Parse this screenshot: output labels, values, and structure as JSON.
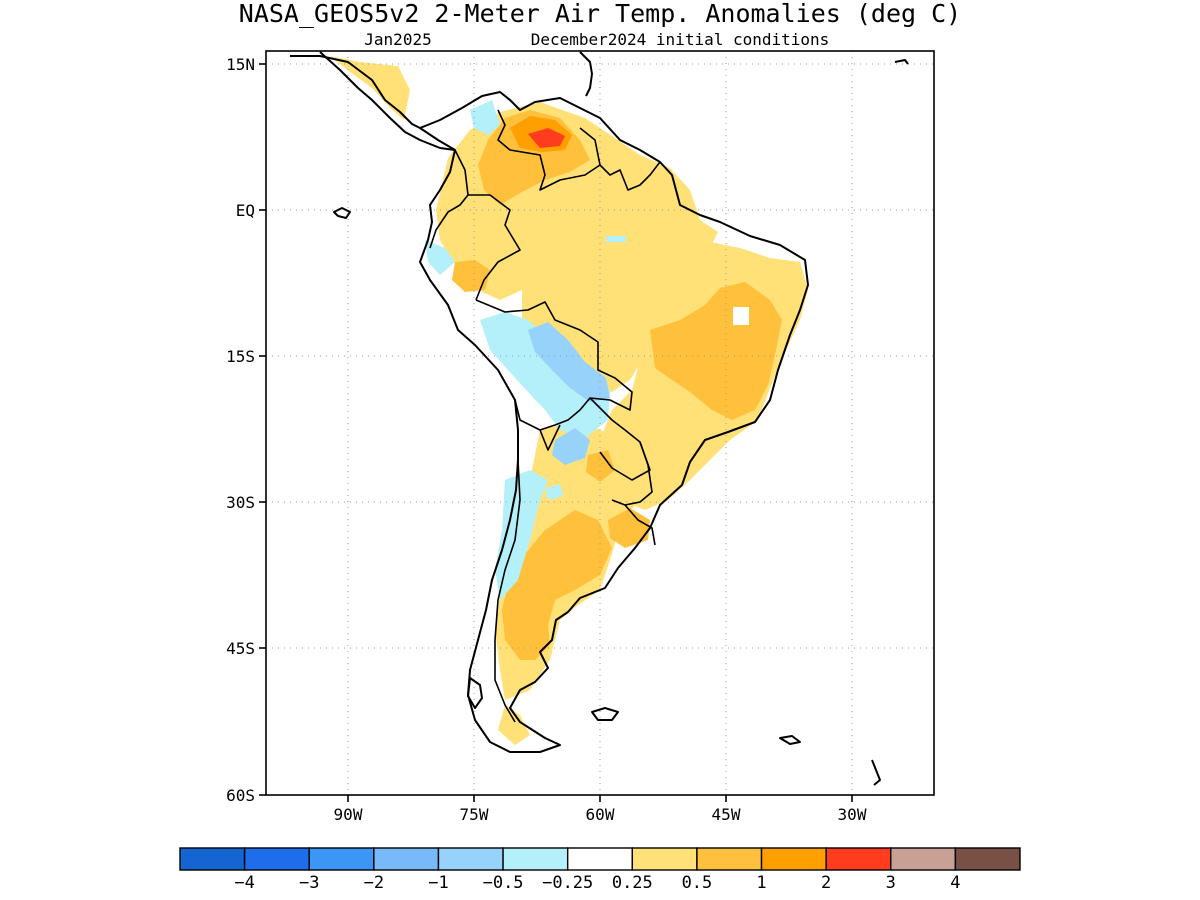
{
  "title": "NASA_GEOS5v2 2-Meter Air Temp. Anomalies (deg C)",
  "subtitle_left": "Jan2025",
  "subtitle_right": "December2024 initial conditions",
  "lat_labels": [
    "15N",
    "EQ",
    "15S",
    "30S",
    "45S",
    "60S"
  ],
  "lon_labels": [
    "90W",
    "75W",
    "60W",
    "45W",
    "30W"
  ],
  "colorbar": {
    "colors": [
      "#1464d2",
      "#1e6eeb",
      "#3c96f5",
      "#78b9fa",
      "#96d2fa",
      "#b4f0fa",
      "#ffffff",
      "#ffe178",
      "#ffc03c",
      "#ffa000",
      "#ff3c1e",
      "#c8a096",
      "#785046"
    ],
    "labels": [
      "−4",
      "−3",
      "−2",
      "−1",
      "−0.5",
      "−0.25",
      "0.25",
      "0.5",
      "1",
      "2",
      "3",
      "4"
    ]
  },
  "palette": {
    "warm_light": "#ffe178",
    "warm_mid": "#ffc03c",
    "warm_strong": "#ffa000",
    "hot": "#ff3c1e",
    "cool_light": "#b4f0fa",
    "cool_mid": "#96d2fa",
    "cool_strong": "#78b9fa"
  }
}
